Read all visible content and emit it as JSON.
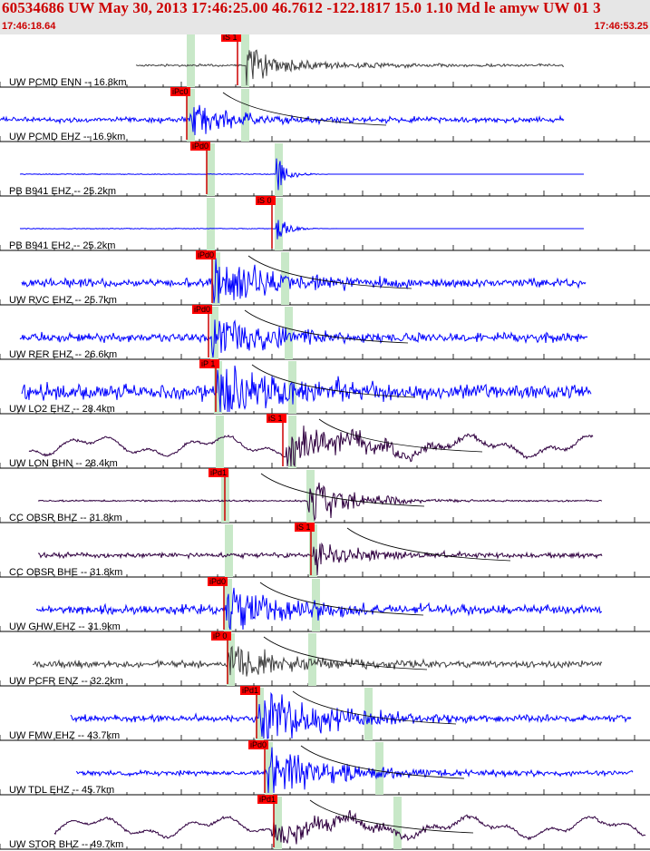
{
  "header": {
    "title": "60534686 UW May 30, 2013 17:46:25.00   46.7612 -122.1817 15.0 1.10 Md le amyw UW 01   3",
    "start_time": "17:46:18.64",
    "end_time": "17:46:53.25"
  },
  "colors": {
    "header_bg": "#e6e6e6",
    "header_text": "#cc0000",
    "pick_box": "#ff0000",
    "pick_band": "#c8e8c8",
    "trace_blue": "#0000ff",
    "trace_gray": "#404040",
    "trace_purple": "#300040"
  },
  "traces": [
    {
      "label": "UW PCMD ENN -- 16.8km",
      "pick": "iS 1",
      "color": "#404040"
    },
    {
      "label": "UW PCMD EHZ -- 16.9km",
      "pick": "iPc0",
      "color": "#0000ff"
    },
    {
      "label": "PB B941 EHZ -- 25.2km",
      "pick": "iPd0",
      "color": "#0000ff"
    },
    {
      "label": "PB B941 EH2 -- 25.2km",
      "pick": "iS 0",
      "color": "#0000ff"
    },
    {
      "label": "UW RVC EHZ -- 25.7km",
      "pick": "iPd0",
      "color": "#0000ff"
    },
    {
      "label": "UW RER EHZ -- 26.6km",
      "pick": "iPd0",
      "color": "#0000ff"
    },
    {
      "label": "UW LO2 EHZ -- 28.4km",
      "pick": "iP 1",
      "color": "#0000ff"
    },
    {
      "label": "UW LON BHN -- 28.4km",
      "pick": "iS 1",
      "color": "#300040"
    },
    {
      "label": "CC OBSR BHZ -- 31.8km",
      "pick": "iPd1",
      "color": "#300040"
    },
    {
      "label": "CC OBSR BHE -- 31.8km",
      "pick": "iS 1",
      "color": "#300040"
    },
    {
      "label": "UW GHW EHZ -- 31.9km",
      "pick": "iPd0",
      "color": "#0000ff"
    },
    {
      "label": "UW PCFR ENZ -- 32.2km",
      "pick": "iP 0",
      "color": "#404040"
    },
    {
      "label": "UW FMW EHZ -- 43.7km",
      "pick": "iPd1",
      "color": "#0000ff"
    },
    {
      "label": "UW TDL EHZ -- 45.7km",
      "pick": "iPd0",
      "color": "#0000ff"
    },
    {
      "label": "UW STOR BHZ -- 49.7km",
      "pick": "iPd1",
      "color": "#300040"
    }
  ]
}
